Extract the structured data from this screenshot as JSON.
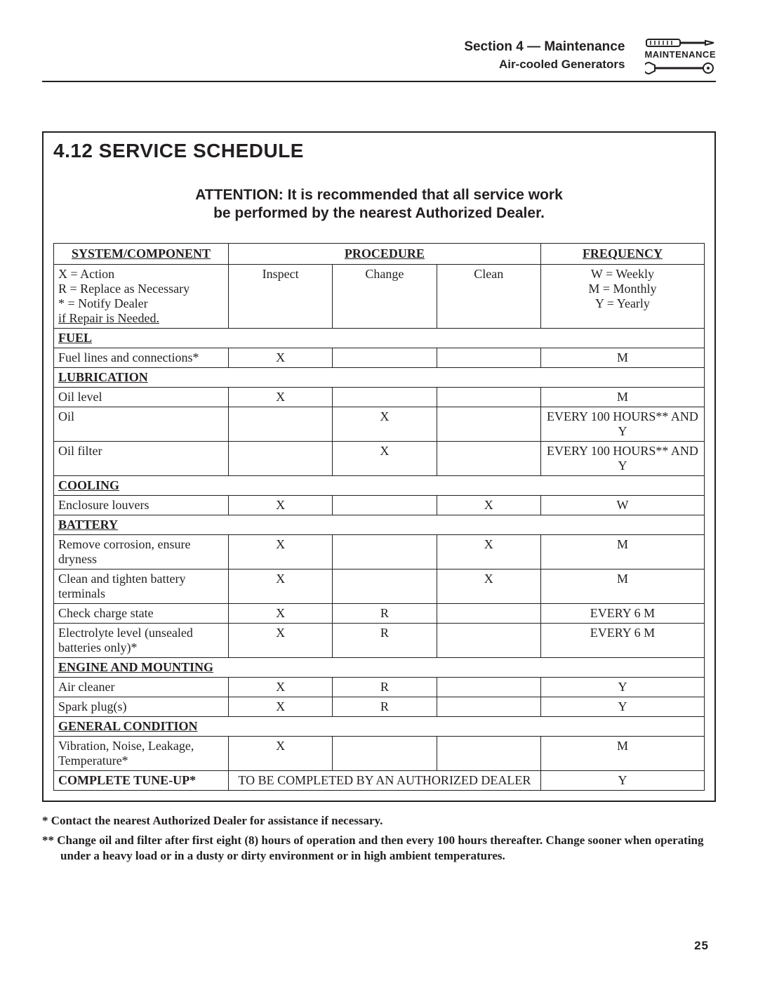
{
  "header": {
    "section": "Section 4 — Maintenance",
    "subtitle": "Air-cooled Generators",
    "icon_label": "MAINTENANCE"
  },
  "schedule": {
    "title": "4.12  SERVICE SCHEDULE",
    "attention_l1": "ATTENTION:  It is recommended that all service work",
    "attention_l2": "be performed by the nearest Authorized Dealer.",
    "col_headers": {
      "system": "SYSTEM/COMPONENT",
      "procedure": "PROCEDURE",
      "frequency": "FREQUENCY"
    },
    "proc_sub": {
      "inspect": "Inspect",
      "change": "Change",
      "clean": "Clean"
    },
    "legend_sys_l1": "X = Action",
    "legend_sys_l2": "R = Replace as Necessary",
    "legend_sys_l3": "*  = Notify Dealer",
    "legend_sys_l4": "      if Repair is Needed.",
    "legend_freq_l1": "W = Weekly",
    "legend_freq_l2": "M = Monthly",
    "legend_freq_l3": "Y = Yearly",
    "sections": [
      {
        "name": "FUEL",
        "rows": [
          {
            "label": "Fuel lines and connections*",
            "inspect": "X",
            "change": "",
            "clean": "",
            "freq": "M"
          }
        ]
      },
      {
        "name": "LUBRICATION",
        "rows": [
          {
            "label": "Oil level",
            "inspect": "X",
            "change": "",
            "clean": "",
            "freq": "M"
          },
          {
            "label": "Oil",
            "inspect": "",
            "change": "X",
            "clean": "",
            "freq": "EVERY 100 HOURS** AND Y"
          },
          {
            "label": "Oil filter",
            "inspect": "",
            "change": "X",
            "clean": "",
            "freq": "EVERY 100 HOURS** AND Y"
          }
        ]
      },
      {
        "name": "COOLING",
        "rows": [
          {
            "label": "Enclosure louvers",
            "inspect": "X",
            "change": "",
            "clean": "X",
            "freq": "W"
          }
        ]
      },
      {
        "name": "BATTERY",
        "rows": [
          {
            "label": "Remove corrosion, ensure dryness",
            "inspect": "X",
            "change": "",
            "clean": "X",
            "freq": "M"
          },
          {
            "label": "Clean and tighten battery terminals",
            "inspect": "X",
            "change": "",
            "clean": "X",
            "freq": "M"
          },
          {
            "label": "Check charge state",
            "inspect": "X",
            "change": "R",
            "clean": "",
            "freq": "EVERY 6 M"
          },
          {
            "label": "Electrolyte level (unsealed batteries only)*",
            "inspect": "X",
            "change": "R",
            "clean": "",
            "freq": "EVERY 6 M"
          }
        ]
      },
      {
        "name": "ENGINE AND MOUNTING",
        "rows": [
          {
            "label": "Air cleaner",
            "inspect": "X",
            "change": "R",
            "clean": "",
            "freq": "Y"
          },
          {
            "label": "Spark plug(s)",
            "inspect": "X",
            "change": "R",
            "clean": "",
            "freq": "Y"
          }
        ]
      },
      {
        "name": "GENERAL CONDITION",
        "rows": [
          {
            "label": "Vibration, Noise, Leakage, Temperature*",
            "inspect": "X",
            "change": "",
            "clean": "",
            "freq": "M"
          }
        ]
      }
    ],
    "tuneup_label": "COMPLETE TUNE-UP*",
    "tuneup_proc": "TO BE COMPLETED BY AN AUTHORIZED DEALER",
    "tuneup_freq": "Y"
  },
  "footnotes": {
    "n1": "*  Contact the nearest Authorized Dealer for assistance if necessary.",
    "n2": "** Change oil and filter after first eight (8) hours of operation and then every 100 hours thereafter. Change sooner when operating under a heavy load or in a dusty or dirty environment or in high ambient temperatures."
  },
  "page_number": "25"
}
